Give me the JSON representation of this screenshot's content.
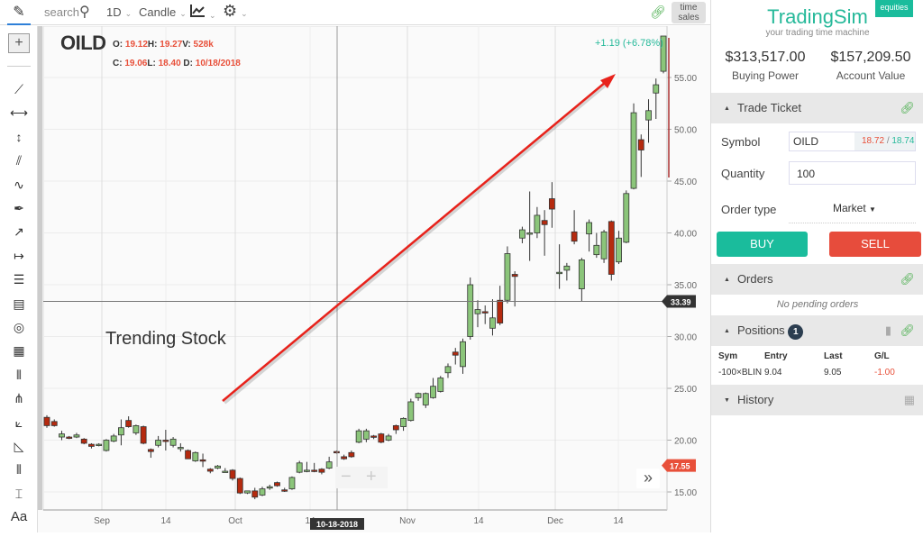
{
  "toolbar": {
    "search_placeholder": "search",
    "interval": "1D",
    "chart_type": "Candle",
    "time_sales": "time sales",
    "icons": [
      "pencil-icon",
      "search-icon",
      "indicator-chart-icon",
      "gear-icon",
      "link-icon"
    ]
  },
  "left_tools": [
    "crosshair",
    "trend-line",
    "horizontal-segment",
    "vertical-segment",
    "parallel-lines",
    "curve",
    "brush",
    "ray",
    "measure",
    "horizontal-lines",
    "ruler",
    "arc",
    "fib-grid",
    "vertical-lines",
    "pitchfork",
    "fan",
    "triangle",
    "many-lines",
    "text-height",
    "text"
  ],
  "text_tool_label": "Aa",
  "chart": {
    "symbol": "OILD",
    "ohlc": {
      "o_label": "O:",
      "o": "19.12",
      "h_label": "H:",
      "h": "19.27",
      "v_label": "V:",
      "v": "528k",
      "c_label": "C:",
      "c": "19.06",
      "l_label": "L:",
      "l": "18.40",
      "d_label": "D:",
      "d": "10/18/2018"
    },
    "change": "+1.19 (+6.78%)",
    "annotation": "Trending Stock",
    "crosshair_price": "33.39",
    "crosshair_date": "10-18-2018",
    "last_price": "17.55",
    "colors": {
      "up": "#8bc57a",
      "down": "#b52a0f",
      "arrow": "#e8221b",
      "change": "#26b99a",
      "last": "#e8503a"
    }
  },
  "chart_data": {
    "type": "candlestick",
    "ylim": [
      13.5,
      59.5
    ],
    "y_ticks": [
      "15.00",
      "20.00",
      "25.00",
      "30.00",
      "35.00",
      "40.00",
      "45.00",
      "50.00",
      "55.00"
    ],
    "x_ticks": [
      "Sep",
      "14",
      "Oct",
      "14",
      "Nov",
      "14",
      "Dec",
      "14"
    ],
    "ohlc": [
      [
        22.2,
        22.4,
        21.2,
        21.4
      ],
      [
        21.8,
        22.0,
        21.3,
        21.4
      ],
      [
        20.3,
        20.9,
        20.0,
        20.6
      ],
      [
        20.3,
        20.4,
        20.1,
        20.2
      ],
      [
        20.3,
        20.7,
        20.2,
        20.5
      ],
      [
        20.1,
        20.2,
        19.6,
        19.7
      ],
      [
        19.6,
        19.7,
        19.2,
        19.4
      ],
      [
        19.5,
        19.7,
        19.4,
        19.6
      ],
      [
        19.0,
        20.1,
        18.9,
        20.0
      ],
      [
        19.9,
        20.6,
        19.8,
        20.4
      ],
      [
        20.5,
        22.0,
        19.5,
        21.2
      ],
      [
        21.9,
        22.3,
        21.2,
        21.3
      ],
      [
        20.7,
        21.5,
        20.5,
        21.4
      ],
      [
        21.3,
        21.4,
        19.6,
        19.7
      ],
      [
        19.1,
        19.2,
        18.3,
        18.9
      ],
      [
        19.5,
        20.4,
        19.3,
        20.0
      ],
      [
        20.0,
        21.0,
        19.0,
        19.9
      ],
      [
        19.5,
        20.3,
        19.3,
        20.1
      ],
      [
        19.3,
        19.7,
        18.9,
        19.3
      ],
      [
        19.0,
        19.1,
        18.2,
        18.2
      ],
      [
        18.0,
        18.9,
        17.9,
        18.8
      ],
      [
        18.1,
        18.7,
        17.4,
        18.0
      ],
      [
        17.2,
        17.3,
        16.8,
        17.0
      ],
      [
        17.3,
        17.6,
        17.2,
        17.5
      ],
      [
        17.0,
        17.3,
        16.9,
        17.0
      ],
      [
        17.1,
        17.2,
        16.1,
        16.3
      ],
      [
        16.3,
        16.4,
        14.8,
        14.9
      ],
      [
        14.9,
        15.1,
        14.8,
        15.1
      ],
      [
        15.1,
        15.4,
        14.3,
        14.5
      ],
      [
        14.7,
        15.5,
        14.6,
        15.3
      ],
      [
        15.4,
        15.7,
        15.2,
        15.5
      ],
      [
        15.9,
        16.0,
        15.5,
        15.6
      ],
      [
        15.2,
        15.4,
        15.0,
        15.1
      ],
      [
        15.3,
        16.5,
        15.2,
        16.4
      ],
      [
        16.9,
        18.0,
        16.8,
        17.8
      ],
      [
        17.1,
        17.9,
        16.9,
        17.1
      ],
      [
        17.1,
        17.8,
        16.9,
        17.0
      ],
      [
        17.2,
        17.3,
        16.7,
        16.9
      ],
      [
        17.3,
        18.4,
        17.2,
        17.9
      ],
      [
        18.9,
        19.0,
        18.7,
        18.8
      ],
      [
        18.4,
        18.6,
        18.1,
        18.2
      ],
      [
        18.8,
        19.0,
        18.3,
        18.4
      ],
      [
        19.8,
        21.1,
        19.7,
        20.9
      ],
      [
        20.1,
        21.1,
        19.8,
        20.9
      ],
      [
        20.4,
        20.5,
        20.1,
        20.3
      ],
      [
        20.6,
        20.7,
        19.7,
        19.8
      ],
      [
        20.0,
        20.6,
        19.9,
        20.4
      ],
      [
        21.4,
        21.5,
        20.6,
        21.0
      ],
      [
        21.3,
        22.2,
        20.9,
        22.1
      ],
      [
        21.9,
        24.0,
        21.8,
        23.7
      ],
      [
        24.1,
        24.6,
        23.8,
        24.5
      ],
      [
        23.4,
        24.6,
        23.1,
        24.5
      ],
      [
        24.1,
        26.0,
        24.0,
        25.2
      ],
      [
        24.7,
        26.2,
        24.6,
        26.0
      ],
      [
        26.5,
        27.4,
        26.0,
        27.1
      ],
      [
        28.5,
        28.9,
        27.3,
        28.2
      ],
      [
        27.1,
        29.8,
        26.4,
        29.5
      ],
      [
        30.0,
        35.7,
        29.7,
        35.0
      ],
      [
        32.2,
        33.5,
        30.9,
        32.6
      ],
      [
        32.4,
        33.0,
        31.2,
        32.3
      ],
      [
        30.8,
        33.6,
        30.1,
        31.8
      ],
      [
        33.5,
        34.9,
        31.1,
        31.3
      ],
      [
        33.5,
        38.7,
        33.2,
        38.0
      ],
      [
        36.0,
        36.3,
        32.9,
        35.8
      ],
      [
        39.5,
        40.6,
        39.0,
        40.3
      ],
      [
        39.9,
        44.0,
        37.3,
        40.0
      ],
      [
        40.0,
        42.5,
        39.5,
        41.7
      ],
      [
        41.2,
        42.2,
        37.8,
        40.8
      ],
      [
        43.3,
        44.9,
        40.5,
        42.3
      ],
      [
        36.1,
        38.9,
        34.6,
        36.2
      ],
      [
        36.4,
        37.1,
        35.4,
        36.8
      ],
      [
        40.1,
        42.2,
        38.9,
        39.2
      ],
      [
        34.6,
        37.6,
        33.4,
        37.4
      ],
      [
        39.9,
        41.3,
        38.2,
        41.0
      ],
      [
        37.9,
        40.0,
        37.6,
        38.8
      ],
      [
        37.5,
        40.3,
        37.1,
        40.1
      ],
      [
        41.1,
        41.2,
        35.4,
        36.0
      ],
      [
        37.2,
        40.2,
        37.0,
        39.5
      ],
      [
        39.1,
        44.1,
        39.0,
        43.8
      ],
      [
        44.3,
        52.5,
        44.2,
        51.6
      ],
      [
        49.0,
        49.5,
        45.4,
        48.0
      ],
      [
        50.9,
        52.9,
        48.7,
        51.8
      ],
      [
        53.5,
        54.9,
        51.0,
        54.3
      ],
      [
        55.6,
        59.0,
        55.4,
        59.0
      ]
    ]
  },
  "panel": {
    "brand": "TradingSim",
    "tagline": "your trading time machine",
    "badge": "equities",
    "buying_power": "$313,517.00",
    "buying_power_label": "Buying Power",
    "account_value": "$157,209.50",
    "account_value_label": "Account Value",
    "trade_ticket": {
      "title": "Trade Ticket",
      "symbol_label": "Symbol",
      "symbol": "OILD",
      "bid": "18.72",
      "sep": "/",
      "ask": "18.74",
      "quantity_label": "Quantity",
      "quantity": "100",
      "order_type_label": "Order type",
      "order_type": "Market",
      "buy": "BUY",
      "sell": "SELL"
    },
    "orders": {
      "title": "Orders",
      "empty": "No pending orders"
    },
    "positions": {
      "title": "Positions",
      "count": "1",
      "headers": [
        "Sym",
        "Entry",
        "Last",
        "G/L"
      ],
      "rows": [
        [
          "-100×BLIN",
          "9.04",
          "9.05",
          "-1.00"
        ]
      ]
    },
    "history": {
      "title": "History"
    },
    "colors": {
      "brand": "#26b99a",
      "buy": "#1abc9c",
      "sell": "#e74c3c",
      "loss": "#e8503a"
    }
  }
}
